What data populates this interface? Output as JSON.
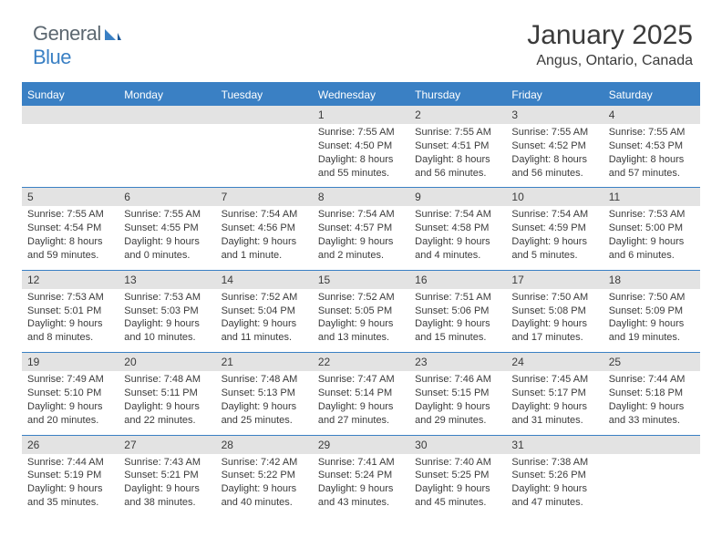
{
  "logo": {
    "text_general": "General",
    "text_blue": "Blue"
  },
  "header": {
    "month_title": "January 2025",
    "location": "Angus, Ontario, Canada"
  },
  "colors": {
    "header_bar": "#3a80c4",
    "daynum_bg": "#e3e3e3",
    "text": "#3b3b3b",
    "logo_gray": "#5c6770",
    "logo_blue": "#3a80c4",
    "background": "#ffffff"
  },
  "calendar": {
    "type": "table",
    "weekdays": [
      "Sunday",
      "Monday",
      "Tuesday",
      "Wednesday",
      "Thursday",
      "Friday",
      "Saturday"
    ],
    "weeks": [
      [
        null,
        null,
        null,
        {
          "day": "1",
          "sunrise": "Sunrise: 7:55 AM",
          "sunset": "Sunset: 4:50 PM",
          "d1": "Daylight: 8 hours",
          "d2": "and 55 minutes."
        },
        {
          "day": "2",
          "sunrise": "Sunrise: 7:55 AM",
          "sunset": "Sunset: 4:51 PM",
          "d1": "Daylight: 8 hours",
          "d2": "and 56 minutes."
        },
        {
          "day": "3",
          "sunrise": "Sunrise: 7:55 AM",
          "sunset": "Sunset: 4:52 PM",
          "d1": "Daylight: 8 hours",
          "d2": "and 56 minutes."
        },
        {
          "day": "4",
          "sunrise": "Sunrise: 7:55 AM",
          "sunset": "Sunset: 4:53 PM",
          "d1": "Daylight: 8 hours",
          "d2": "and 57 minutes."
        }
      ],
      [
        {
          "day": "5",
          "sunrise": "Sunrise: 7:55 AM",
          "sunset": "Sunset: 4:54 PM",
          "d1": "Daylight: 8 hours",
          "d2": "and 59 minutes."
        },
        {
          "day": "6",
          "sunrise": "Sunrise: 7:55 AM",
          "sunset": "Sunset: 4:55 PM",
          "d1": "Daylight: 9 hours",
          "d2": "and 0 minutes."
        },
        {
          "day": "7",
          "sunrise": "Sunrise: 7:54 AM",
          "sunset": "Sunset: 4:56 PM",
          "d1": "Daylight: 9 hours",
          "d2": "and 1 minute."
        },
        {
          "day": "8",
          "sunrise": "Sunrise: 7:54 AM",
          "sunset": "Sunset: 4:57 PM",
          "d1": "Daylight: 9 hours",
          "d2": "and 2 minutes."
        },
        {
          "day": "9",
          "sunrise": "Sunrise: 7:54 AM",
          "sunset": "Sunset: 4:58 PM",
          "d1": "Daylight: 9 hours",
          "d2": "and 4 minutes."
        },
        {
          "day": "10",
          "sunrise": "Sunrise: 7:54 AM",
          "sunset": "Sunset: 4:59 PM",
          "d1": "Daylight: 9 hours",
          "d2": "and 5 minutes."
        },
        {
          "day": "11",
          "sunrise": "Sunrise: 7:53 AM",
          "sunset": "Sunset: 5:00 PM",
          "d1": "Daylight: 9 hours",
          "d2": "and 6 minutes."
        }
      ],
      [
        {
          "day": "12",
          "sunrise": "Sunrise: 7:53 AM",
          "sunset": "Sunset: 5:01 PM",
          "d1": "Daylight: 9 hours",
          "d2": "and 8 minutes."
        },
        {
          "day": "13",
          "sunrise": "Sunrise: 7:53 AM",
          "sunset": "Sunset: 5:03 PM",
          "d1": "Daylight: 9 hours",
          "d2": "and 10 minutes."
        },
        {
          "day": "14",
          "sunrise": "Sunrise: 7:52 AM",
          "sunset": "Sunset: 5:04 PM",
          "d1": "Daylight: 9 hours",
          "d2": "and 11 minutes."
        },
        {
          "day": "15",
          "sunrise": "Sunrise: 7:52 AM",
          "sunset": "Sunset: 5:05 PM",
          "d1": "Daylight: 9 hours",
          "d2": "and 13 minutes."
        },
        {
          "day": "16",
          "sunrise": "Sunrise: 7:51 AM",
          "sunset": "Sunset: 5:06 PM",
          "d1": "Daylight: 9 hours",
          "d2": "and 15 minutes."
        },
        {
          "day": "17",
          "sunrise": "Sunrise: 7:50 AM",
          "sunset": "Sunset: 5:08 PM",
          "d1": "Daylight: 9 hours",
          "d2": "and 17 minutes."
        },
        {
          "day": "18",
          "sunrise": "Sunrise: 7:50 AM",
          "sunset": "Sunset: 5:09 PM",
          "d1": "Daylight: 9 hours",
          "d2": "and 19 minutes."
        }
      ],
      [
        {
          "day": "19",
          "sunrise": "Sunrise: 7:49 AM",
          "sunset": "Sunset: 5:10 PM",
          "d1": "Daylight: 9 hours",
          "d2": "and 20 minutes."
        },
        {
          "day": "20",
          "sunrise": "Sunrise: 7:48 AM",
          "sunset": "Sunset: 5:11 PM",
          "d1": "Daylight: 9 hours",
          "d2": "and 22 minutes."
        },
        {
          "day": "21",
          "sunrise": "Sunrise: 7:48 AM",
          "sunset": "Sunset: 5:13 PM",
          "d1": "Daylight: 9 hours",
          "d2": "and 25 minutes."
        },
        {
          "day": "22",
          "sunrise": "Sunrise: 7:47 AM",
          "sunset": "Sunset: 5:14 PM",
          "d1": "Daylight: 9 hours",
          "d2": "and 27 minutes."
        },
        {
          "day": "23",
          "sunrise": "Sunrise: 7:46 AM",
          "sunset": "Sunset: 5:15 PM",
          "d1": "Daylight: 9 hours",
          "d2": "and 29 minutes."
        },
        {
          "day": "24",
          "sunrise": "Sunrise: 7:45 AM",
          "sunset": "Sunset: 5:17 PM",
          "d1": "Daylight: 9 hours",
          "d2": "and 31 minutes."
        },
        {
          "day": "25",
          "sunrise": "Sunrise: 7:44 AM",
          "sunset": "Sunset: 5:18 PM",
          "d1": "Daylight: 9 hours",
          "d2": "and 33 minutes."
        }
      ],
      [
        {
          "day": "26",
          "sunrise": "Sunrise: 7:44 AM",
          "sunset": "Sunset: 5:19 PM",
          "d1": "Daylight: 9 hours",
          "d2": "and 35 minutes."
        },
        {
          "day": "27",
          "sunrise": "Sunrise: 7:43 AM",
          "sunset": "Sunset: 5:21 PM",
          "d1": "Daylight: 9 hours",
          "d2": "and 38 minutes."
        },
        {
          "day": "28",
          "sunrise": "Sunrise: 7:42 AM",
          "sunset": "Sunset: 5:22 PM",
          "d1": "Daylight: 9 hours",
          "d2": "and 40 minutes."
        },
        {
          "day": "29",
          "sunrise": "Sunrise: 7:41 AM",
          "sunset": "Sunset: 5:24 PM",
          "d1": "Daylight: 9 hours",
          "d2": "and 43 minutes."
        },
        {
          "day": "30",
          "sunrise": "Sunrise: 7:40 AM",
          "sunset": "Sunset: 5:25 PM",
          "d1": "Daylight: 9 hours",
          "d2": "and 45 minutes."
        },
        {
          "day": "31",
          "sunrise": "Sunrise: 7:38 AM",
          "sunset": "Sunset: 5:26 PM",
          "d1": "Daylight: 9 hours",
          "d2": "and 47 minutes."
        },
        null
      ]
    ]
  }
}
